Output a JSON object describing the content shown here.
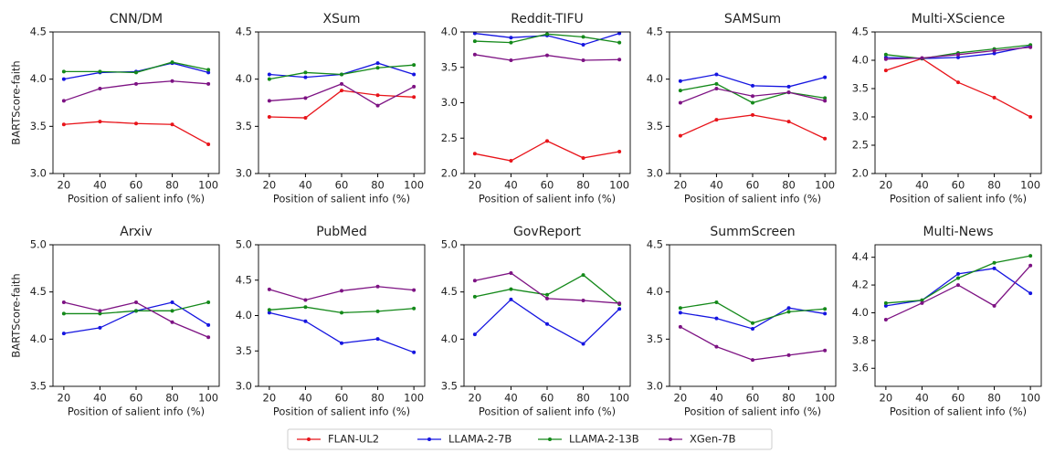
{
  "chart_data": [
    {
      "type": "line",
      "title": "CNN/DM",
      "xlabel": "Position of salient info (%)",
      "ylabel": "BARTScore-faith",
      "x": [
        20,
        40,
        60,
        80,
        100
      ],
      "xlim": [
        14,
        106
      ],
      "xticks": [
        20,
        40,
        60,
        80,
        100
      ],
      "ylim": [
        3,
        4.5
      ],
      "yticks": [
        {
          "value": 3,
          "label": "3.0"
        },
        3.5,
        {
          "value": 4,
          "label": "4.0"
        },
        4.5
      ],
      "series": [
        {
          "name": "FLAN-UL2",
          "color": "#e8141a",
          "values": [
            3.52,
            3.55,
            3.53,
            3.52,
            3.31
          ]
        },
        {
          "name": "LLAMA-2-7B",
          "color": "#1515e0",
          "values": [
            4.0,
            4.07,
            4.08,
            4.17,
            4.07
          ]
        },
        {
          "name": "LLAMA-2-13B",
          "color": "#14891a",
          "values": [
            4.08,
            4.08,
            4.07,
            4.18,
            4.1
          ]
        },
        {
          "name": "XGen-7B",
          "color": "#7d1283",
          "values": [
            3.77,
            3.9,
            3.95,
            3.98,
            3.95
          ]
        }
      ]
    },
    {
      "type": "line",
      "title": "XSum",
      "xlabel": "Position of salient info (%)",
      "x": [
        20,
        40,
        60,
        80,
        100
      ],
      "xlim": [
        14,
        106
      ],
      "xticks": [
        20,
        40,
        60,
        80,
        100
      ],
      "ylim": [
        3,
        4.5
      ],
      "yticks": [
        {
          "value": 3,
          "label": "3.0"
        },
        3.5,
        {
          "value": 4,
          "label": "4.0"
        },
        4.5
      ],
      "series": [
        {
          "name": "FLAN-UL2",
          "color": "#e8141a",
          "values": [
            3.6,
            3.59,
            3.88,
            3.83,
            3.81
          ]
        },
        {
          "name": "LLAMA-2-7B",
          "color": "#1515e0",
          "values": [
            4.05,
            4.02,
            4.05,
            4.17,
            4.05
          ]
        },
        {
          "name": "LLAMA-2-13B",
          "color": "#14891a",
          "values": [
            4.0,
            4.07,
            4.05,
            4.12,
            4.15
          ]
        },
        {
          "name": "XGen-7B",
          "color": "#7d1283",
          "values": [
            3.77,
            3.8,
            3.95,
            3.72,
            3.92
          ]
        }
      ]
    },
    {
      "type": "line",
      "title": "Reddit-TIFU",
      "xlabel": "Position of salient info (%)",
      "x": [
        20,
        40,
        60,
        80,
        100
      ],
      "xlim": [
        14,
        106
      ],
      "xticks": [
        20,
        40,
        60,
        80,
        100
      ],
      "ylim": [
        2,
        4
      ],
      "yticks": [
        {
          "value": 2,
          "label": "2.0"
        },
        2.5,
        {
          "value": 3,
          "label": "3.0"
        },
        3.5,
        {
          "value": 4,
          "label": "4.0"
        }
      ],
      "series": [
        {
          "name": "FLAN-UL2",
          "color": "#e8141a",
          "values": [
            2.28,
            2.18,
            2.46,
            2.22,
            2.31
          ]
        },
        {
          "name": "LLAMA-2-7B",
          "color": "#1515e0",
          "values": [
            3.98,
            3.92,
            3.95,
            3.82,
            3.98
          ]
        },
        {
          "name": "LLAMA-2-13B",
          "color": "#14891a",
          "values": [
            3.87,
            3.85,
            3.97,
            3.93,
            3.85
          ]
        },
        {
          "name": "XGen-7B",
          "color": "#7d1283",
          "values": [
            3.68,
            3.6,
            3.67,
            3.6,
            3.61
          ]
        }
      ]
    },
    {
      "type": "line",
      "title": "SAMSum",
      "xlabel": "Position of salient info (%)",
      "x": [
        20,
        40,
        60,
        80,
        100
      ],
      "xlim": [
        14,
        106
      ],
      "xticks": [
        20,
        40,
        60,
        80,
        100
      ],
      "ylim": [
        3,
        4.5
      ],
      "yticks": [
        {
          "value": 3,
          "label": "3.0"
        },
        3.5,
        {
          "value": 4,
          "label": "4.0"
        },
        4.5
      ],
      "series": [
        {
          "name": "FLAN-UL2",
          "color": "#e8141a",
          "values": [
            3.4,
            3.57,
            3.62,
            3.55,
            3.37
          ]
        },
        {
          "name": "LLAMA-2-7B",
          "color": "#1515e0",
          "values": [
            3.98,
            4.05,
            3.93,
            3.92,
            4.02
          ]
        },
        {
          "name": "LLAMA-2-13B",
          "color": "#14891a",
          "values": [
            3.88,
            3.95,
            3.75,
            3.86,
            3.8
          ]
        },
        {
          "name": "XGen-7B",
          "color": "#7d1283",
          "values": [
            3.75,
            3.9,
            3.82,
            3.86,
            3.77
          ]
        }
      ]
    },
    {
      "type": "line",
      "title": "Multi-XScience",
      "xlabel": "Position of salient info (%)",
      "x": [
        20,
        40,
        60,
        80,
        100
      ],
      "xlim": [
        14,
        106
      ],
      "xticks": [
        20,
        40,
        60,
        80,
        100
      ],
      "ylim": [
        2,
        4.5
      ],
      "yticks": [
        {
          "value": 2,
          "label": "2.0"
        },
        2.5,
        {
          "value": 3,
          "label": "3.0"
        },
        3.5,
        {
          "value": 4,
          "label": "4.0"
        },
        4.5
      ],
      "series": [
        {
          "name": "FLAN-UL2",
          "color": "#e8141a",
          "values": [
            3.82,
            4.03,
            3.61,
            3.34,
            3.0
          ]
        },
        {
          "name": "LLAMA-2-7B",
          "color": "#1515e0",
          "values": [
            4.05,
            4.03,
            4.05,
            4.12,
            4.25
          ]
        },
        {
          "name": "LLAMA-2-13B",
          "color": "#14891a",
          "values": [
            4.1,
            4.03,
            4.13,
            4.2,
            4.27
          ]
        },
        {
          "name": "XGen-7B",
          "color": "#7d1283",
          "values": [
            4.02,
            4.04,
            4.1,
            4.17,
            4.23
          ]
        }
      ]
    },
    {
      "type": "line",
      "title": "Arxiv",
      "xlabel": "Position of salient info (%)",
      "ylabel": "BARTScore-faith",
      "x": [
        20,
        40,
        60,
        80,
        100
      ],
      "xlim": [
        14,
        106
      ],
      "xticks": [
        20,
        40,
        60,
        80,
        100
      ],
      "ylim": [
        3.5,
        5
      ],
      "yticks": [
        3.5,
        {
          "value": 4,
          "label": "4.0"
        },
        4.5,
        {
          "value": 5,
          "label": "5.0"
        }
      ],
      "series": [
        {
          "name": "LLAMA-2-7B",
          "color": "#1515e0",
          "values": [
            4.06,
            4.12,
            4.3,
            4.39,
            4.15
          ]
        },
        {
          "name": "LLAMA-2-13B",
          "color": "#14891a",
          "values": [
            4.27,
            4.27,
            4.3,
            4.3,
            4.39
          ]
        },
        {
          "name": "XGen-7B",
          "color": "#7d1283",
          "values": [
            4.39,
            4.3,
            4.39,
            4.18,
            4.02
          ]
        }
      ]
    },
    {
      "type": "line",
      "title": "PubMed",
      "xlabel": "Position of salient info (%)",
      "x": [
        20,
        40,
        60,
        80,
        100
      ],
      "xlim": [
        14,
        106
      ],
      "xticks": [
        20,
        40,
        60,
        80,
        100
      ],
      "ylim": [
        3,
        5
      ],
      "yticks": [
        {
          "value": 3,
          "label": "3.0"
        },
        3.5,
        {
          "value": 4,
          "label": "4.0"
        },
        4.5,
        {
          "value": 5,
          "label": "5.0"
        }
      ],
      "series": [
        {
          "name": "LLAMA-2-7B",
          "color": "#1515e0",
          "values": [
            4.04,
            3.92,
            3.61,
            3.67,
            3.48
          ]
        },
        {
          "name": "LLAMA-2-13B",
          "color": "#14891a",
          "values": [
            4.08,
            4.12,
            4.04,
            4.06,
            4.1
          ]
        },
        {
          "name": "XGen-7B",
          "color": "#7d1283",
          "values": [
            4.37,
            4.22,
            4.35,
            4.41,
            4.36
          ]
        }
      ]
    },
    {
      "type": "line",
      "title": "GovReport",
      "xlabel": "Position of salient info (%)",
      "x": [
        20,
        40,
        60,
        80,
        100
      ],
      "xlim": [
        14,
        106
      ],
      "xticks": [
        20,
        40,
        60,
        80,
        100
      ],
      "ylim": [
        3.5,
        5
      ],
      "yticks": [
        3.5,
        {
          "value": 4,
          "label": "4.0"
        },
        4.5,
        {
          "value": 5,
          "label": "5.0"
        }
      ],
      "series": [
        {
          "name": "LLAMA-2-7B",
          "color": "#1515e0",
          "values": [
            4.05,
            4.42,
            4.16,
            3.95,
            4.32
          ]
        },
        {
          "name": "LLAMA-2-13B",
          "color": "#14891a",
          "values": [
            4.45,
            4.53,
            4.47,
            4.68,
            4.37
          ]
        },
        {
          "name": "XGen-7B",
          "color": "#7d1283",
          "values": [
            4.62,
            4.7,
            4.43,
            4.41,
            4.38
          ]
        }
      ]
    },
    {
      "type": "line",
      "title": "SummScreen",
      "xlabel": "Position of salient info (%)",
      "x": [
        20,
        40,
        60,
        80,
        100
      ],
      "xlim": [
        14,
        106
      ],
      "xticks": [
        20,
        40,
        60,
        80,
        100
      ],
      "ylim": [
        3,
        4.5
      ],
      "yticks": [
        {
          "value": 3,
          "label": "3.0"
        },
        3.5,
        {
          "value": 4,
          "label": "4.0"
        },
        4.5
      ],
      "series": [
        {
          "name": "LLAMA-2-7B",
          "color": "#1515e0",
          "values": [
            3.78,
            3.72,
            3.61,
            3.83,
            3.77
          ]
        },
        {
          "name": "LLAMA-2-13B",
          "color": "#14891a",
          "values": [
            3.83,
            3.89,
            3.67,
            3.79,
            3.82
          ]
        },
        {
          "name": "XGen-7B",
          "color": "#7d1283",
          "values": [
            3.63,
            3.42,
            3.28,
            3.33,
            3.38
          ]
        }
      ]
    },
    {
      "type": "line",
      "title": "Multi-News",
      "xlabel": "Position of salient info (%)",
      "x": [
        20,
        40,
        60,
        80,
        100
      ],
      "xlim": [
        14,
        106
      ],
      "xticks": [
        20,
        40,
        60,
        80,
        100
      ],
      "ylim": [
        3.47,
        4.49
      ],
      "yticks": [
        3.6,
        3.8,
        {
          "value": 4,
          "label": "4.0"
        },
        4.2,
        4.4
      ],
      "series": [
        {
          "name": "LLAMA-2-7B",
          "color": "#1515e0",
          "values": [
            4.05,
            4.09,
            4.28,
            4.32,
            4.14
          ]
        },
        {
          "name": "LLAMA-2-13B",
          "color": "#14891a",
          "values": [
            4.07,
            4.09,
            4.25,
            4.36,
            4.41
          ]
        },
        {
          "name": "XGen-7B",
          "color": "#7d1283",
          "values": [
            3.95,
            4.07,
            4.2,
            4.05,
            4.34
          ]
        }
      ]
    }
  ]
}
